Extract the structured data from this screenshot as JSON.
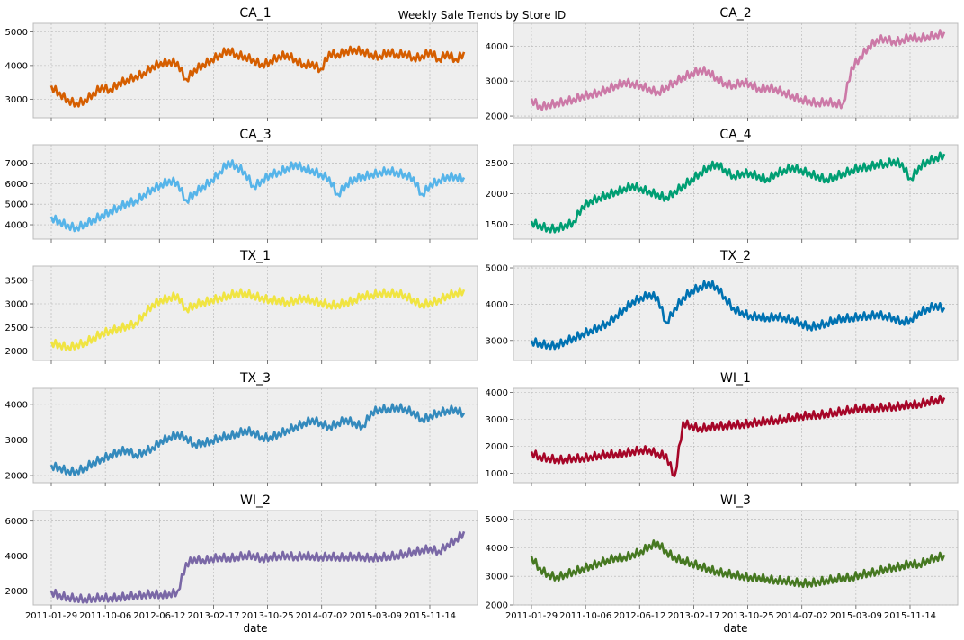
{
  "suptitle": "Weekly Sale Trends by Store ID",
  "chart_data": {
    "type": "line",
    "title": "Weekly Sale Trends by Store ID",
    "x_ticks": [
      "2011-01-29",
      "2011-10-06",
      "2012-06-12",
      "2013-02-17",
      "2013-10-25",
      "2014-07-02",
      "2015-03-09",
      "2015-11-14"
    ],
    "x_range": [
      "2011-01-29",
      "2016-04-20"
    ],
    "xlabel": "date",
    "grid": true,
    "panels": [
      {
        "title": "CA_1",
        "color": "#d55e00",
        "ylim": [
          2450,
          5250
        ],
        "yticks": [
          3000,
          4000,
          5000
        ],
        "values": [
          3400,
          3200,
          3000,
          2900,
          3000,
          3200,
          3400,
          3300,
          3500,
          3600,
          3700,
          3800,
          4000,
          4100,
          4150,
          4100,
          3600,
          3900,
          4050,
          4200,
          4350,
          4500,
          4350,
          4300,
          4200,
          4050,
          4150,
          4300,
          4350,
          4200,
          4050,
          4100,
          3900,
          4400,
          4350,
          4450,
          4500,
          4450,
          4350,
          4300,
          4450,
          4350,
          4400,
          4250,
          4300,
          4450,
          4200,
          4400,
          4200,
          4400
        ]
      },
      {
        "title": "CA_2",
        "color": "#cc79a7",
        "ylim": [
          1950,
          4650
        ],
        "yticks": [
          2000,
          3000,
          4000
        ],
        "values": [
          2500,
          2300,
          2350,
          2400,
          2450,
          2500,
          2600,
          2650,
          2700,
          2800,
          2900,
          3000,
          2950,
          2900,
          2800,
          2700,
          2850,
          3000,
          3150,
          3250,
          3350,
          3300,
          3100,
          2950,
          2900,
          3000,
          2950,
          2800,
          2850,
          2800,
          2700,
          2600,
          2500,
          2450,
          2400,
          2450,
          2400,
          2350,
          3400,
          3700,
          4000,
          4200,
          4250,
          4150,
          4200,
          4300,
          4250,
          4300,
          4350,
          4400
        ]
      },
      {
        "title": "CA_3",
        "color": "#56b4e9",
        "ylim": [
          3300,
          7900
        ],
        "yticks": [
          4000,
          5000,
          6000,
          7000
        ],
        "values": [
          4400,
          4200,
          4000,
          3900,
          4100,
          4300,
          4500,
          4700,
          4900,
          5100,
          5200,
          5500,
          5800,
          6000,
          6200,
          6100,
          5200,
          5600,
          5900,
          6200,
          6600,
          7100,
          6900,
          6600,
          5900,
          6200,
          6500,
          6600,
          6800,
          7000,
          6800,
          6700,
          6500,
          6300,
          5500,
          6000,
          6300,
          6400,
          6500,
          6600,
          6700,
          6600,
          6500,
          6300,
          5500,
          6000,
          6200,
          6400,
          6400,
          6300
        ]
      },
      {
        "title": "CA_4",
        "color": "#009e73",
        "ylim": [
          1260,
          2800
        ],
        "yticks": [
          1500,
          2000,
          2500
        ],
        "values": [
          1550,
          1500,
          1450,
          1450,
          1500,
          1550,
          1800,
          1900,
          1950,
          2000,
          2050,
          2100,
          2150,
          2100,
          2050,
          2000,
          1950,
          2050,
          2150,
          2250,
          2350,
          2450,
          2500,
          2400,
          2300,
          2350,
          2350,
          2300,
          2250,
          2350,
          2400,
          2450,
          2400,
          2350,
          2300,
          2250,
          2300,
          2350,
          2400,
          2450,
          2450,
          2500,
          2500,
          2550,
          2500,
          2250,
          2450,
          2550,
          2600,
          2650
        ]
      },
      {
        "title": "TX_1",
        "color": "#f0e442",
        "ylim": [
          1800,
          3800
        ],
        "yticks": [
          2000,
          2500,
          3000,
          3500
        ],
        "values": [
          2200,
          2150,
          2100,
          2150,
          2200,
          2300,
          2400,
          2450,
          2500,
          2550,
          2600,
          2800,
          3000,
          3100,
          3150,
          3200,
          2900,
          3000,
          3050,
          3100,
          3150,
          3200,
          3250,
          3250,
          3200,
          3150,
          3100,
          3100,
          3050,
          3100,
          3150,
          3100,
          3050,
          3000,
          3000,
          3050,
          3100,
          3200,
          3200,
          3250,
          3250,
          3250,
          3200,
          3100,
          3000,
          3050,
          3100,
          3200,
          3250,
          3300
        ]
      },
      {
        "title": "TX_2",
        "color": "#0072b2",
        "ylim": [
          2450,
          5050
        ],
        "yticks": [
          3000,
          4000,
          5000
        ],
        "values": [
          3000,
          2950,
          2900,
          2900,
          3000,
          3100,
          3200,
          3300,
          3400,
          3500,
          3700,
          3900,
          4100,
          4200,
          4300,
          4200,
          3500,
          3900,
          4200,
          4400,
          4500,
          4600,
          4500,
          4200,
          3900,
          3800,
          3700,
          3700,
          3650,
          3700,
          3650,
          3600,
          3500,
          3400,
          3450,
          3500,
          3600,
          3650,
          3650,
          3700,
          3700,
          3750,
          3700,
          3650,
          3550,
          3600,
          3800,
          3900,
          4000,
          3900
        ]
      },
      {
        "title": "TX_3",
        "color": "#348abd",
        "ylim": [
          1800,
          4450
        ],
        "yticks": [
          2000,
          3000,
          4000
        ],
        "values": [
          2300,
          2250,
          2150,
          2150,
          2250,
          2400,
          2500,
          2600,
          2700,
          2750,
          2600,
          2700,
          2800,
          3000,
          3100,
          3200,
          3100,
          2900,
          2950,
          3000,
          3100,
          3150,
          3200,
          3300,
          3250,
          3100,
          3100,
          3200,
          3300,
          3400,
          3500,
          3600,
          3500,
          3400,
          3500,
          3600,
          3500,
          3400,
          3800,
          3900,
          3900,
          3950,
          3900,
          3800,
          3600,
          3700,
          3800,
          3850,
          3900,
          3750
        ]
      },
      {
        "title": "WI_1",
        "color": "#a60628",
        "ylim": [
          650,
          4150
        ],
        "yticks": [
          1000,
          2000,
          3000,
          4000
        ],
        "values": [
          1800,
          1650,
          1600,
          1550,
          1550,
          1600,
          1600,
          1650,
          1700,
          1750,
          1750,
          1800,
          1850,
          1900,
          1900,
          1750,
          1700,
          900,
          2900,
          2800,
          2700,
          2750,
          2800,
          2800,
          2850,
          2850,
          2900,
          2950,
          3000,
          3000,
          3050,
          3100,
          3150,
          3200,
          3200,
          3250,
          3300,
          3350,
          3400,
          3450,
          3450,
          3450,
          3500,
          3500,
          3550,
          3600,
          3600,
          3700,
          3750,
          3800
        ]
      },
      {
        "title": "WI_2",
        "color": "#7a68a6",
        "ylim": [
          1200,
          6600
        ],
        "yticks": [
          2000,
          4000,
          6000
        ],
        "values": [
          2000,
          1800,
          1700,
          1650,
          1600,
          1650,
          1700,
          1650,
          1700,
          1750,
          1800,
          1850,
          1900,
          1850,
          1900,
          2000,
          3600,
          3900,
          3800,
          3900,
          4000,
          3950,
          4000,
          4100,
          4100,
          3900,
          4000,
          4050,
          4100,
          4000,
          4100,
          4050,
          4000,
          4050,
          4000,
          4000,
          4050,
          4000,
          3950,
          4000,
          4050,
          4100,
          4200,
          4300,
          4400,
          4500,
          4300,
          4700,
          5000,
          5400
        ]
      },
      {
        "title": "WI_3",
        "color": "#467821",
        "ylim": [
          2000,
          5300
        ],
        "yticks": [
          2000,
          3000,
          4000,
          5000
        ],
        "values": [
          3700,
          3300,
          3100,
          3000,
          3100,
          3200,
          3300,
          3400,
          3500,
          3600,
          3700,
          3700,
          3800,
          3900,
          4100,
          4200,
          3900,
          3700,
          3600,
          3500,
          3400,
          3300,
          3200,
          3150,
          3100,
          3050,
          3000,
          3000,
          2950,
          2900,
          2900,
          2850,
          2800,
          2800,
          2850,
          2900,
          2950,
          3000,
          3000,
          3100,
          3150,
          3200,
          3300,
          3350,
          3400,
          3500,
          3450,
          3600,
          3700,
          3750
        ]
      }
    ]
  }
}
